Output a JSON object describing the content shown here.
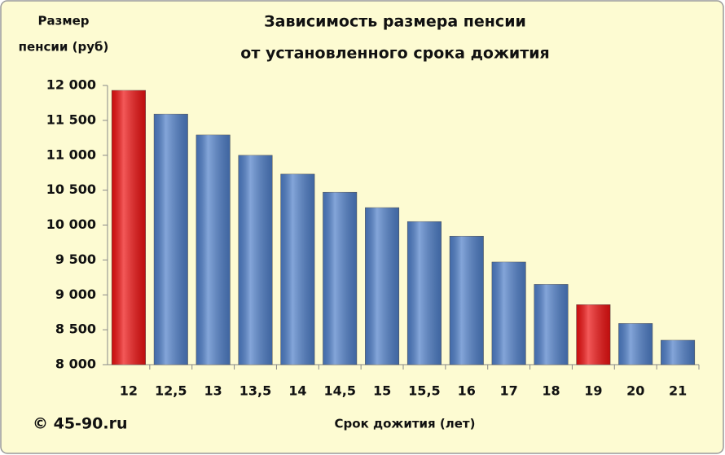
{
  "chart_data": {
    "type": "bar",
    "title": [
      "Зависимость размера пенсии",
      "от установленного срока дожития"
    ],
    "y_label": [
      "Размер",
      "пенсии  (руб)"
    ],
    "x_label": "Срок дожития (лет)",
    "annotation": "© 45-90.ru",
    "categories": [
      "12",
      "12,5",
      "13",
      "13,5",
      "14",
      "14,5",
      "15",
      "15,5",
      "16",
      "17",
      "18",
      "19",
      "20",
      "21"
    ],
    "values": [
      11930,
      11590,
      11290,
      11000,
      10730,
      10470,
      10250,
      10050,
      9840,
      9470,
      9150,
      8860,
      8590,
      8350
    ],
    "colors": [
      "#ee1111",
      "#4f7fc9",
      "#4f7fc9",
      "#4f7fc9",
      "#4f7fc9",
      "#4f7fc9",
      "#4f7fc9",
      "#4f7fc9",
      "#4f7fc9",
      "#4f7fc9",
      "#4f7fc9",
      "#ee1111",
      "#4f7fc9",
      "#4f7fc9"
    ],
    "ylim": [
      8000,
      12000
    ],
    "yticks": [
      {
        "value": 8000,
        "label": "8 000"
      },
      {
        "value": 8500,
        "label": "8 500"
      },
      {
        "value": 9000,
        "label": "9 000"
      },
      {
        "value": 9500,
        "label": "9 500"
      },
      {
        "value": 10000,
        "label": "10 000"
      },
      {
        "value": 10500,
        "label": "10 500"
      },
      {
        "value": 11000,
        "label": "11 000"
      },
      {
        "value": 11500,
        "label": "11 500"
      },
      {
        "value": 12000,
        "label": "12 000"
      }
    ],
    "grid": false
  }
}
